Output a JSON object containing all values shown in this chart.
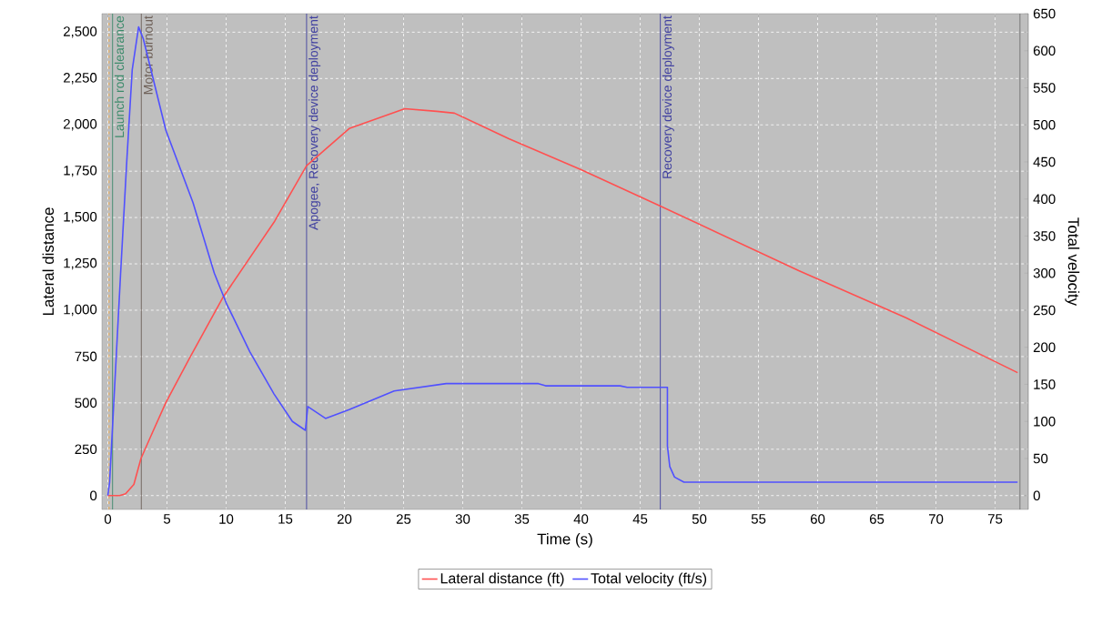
{
  "chart_data": {
    "type": "line",
    "xlabel": "Time (s)",
    "ylabel": "Lateral distance",
    "y2label": "Total velocity",
    "xlim": [
      -0.5,
      77.8
    ],
    "ylim": [
      -75,
      2600
    ],
    "y2lim": [
      -18.75,
      650
    ],
    "xticks": [
      0,
      5,
      10,
      15,
      20,
      25,
      30,
      35,
      40,
      45,
      50,
      55,
      60,
      65,
      70,
      75
    ],
    "yticks": [
      0,
      250,
      500,
      750,
      {
        "value": 1000,
        "label": "1,000"
      },
      {
        "value": 1250,
        "label": "1,250"
      },
      {
        "value": 1500,
        "label": "1,500"
      },
      {
        "value": 1750,
        "label": "1,750"
      },
      {
        "value": 2000,
        "label": "2,000"
      },
      {
        "value": 2250,
        "label": "2,250"
      },
      {
        "value": 2500,
        "label": "2,500"
      }
    ],
    "y2ticks": [
      0,
      50,
      100,
      150,
      200,
      250,
      300,
      350,
      400,
      450,
      500,
      550,
      600,
      650
    ],
    "grid": true,
    "legend": "bottom",
    "marker": "none",
    "line_style": "solid",
    "series": [
      {
        "name": "Lateral distance (ft)",
        "color": "#ff5050",
        "x": [
          0,
          0.5,
          1.0,
          1.5,
          2.2,
          2.8,
          3.7,
          4.9,
          6.95,
          9.7,
          14.1,
          16.8,
          20.4,
          25.1,
          27.8,
          29.3,
          33.9,
          40,
          46.7,
          58.4,
          67.5,
          76.9
        ],
        "values": [
          0,
          0,
          0,
          10,
          60,
          200,
          330,
          501,
          747,
          1066,
          1480,
          1780,
          1980,
          2087,
          2073,
          2063,
          1925,
          1758,
          1562,
          1213,
          958,
          663
        ]
      },
      {
        "name": "Total velocity (ft/s)",
        "color": "#5050ff",
        "axis": "y2",
        "x": [
          0,
          0.15,
          1.07,
          1.6,
          2.06,
          2.6,
          3.0,
          4.9,
          7.2,
          9.0,
          10.0,
          12.0,
          14.05,
          15.6,
          16.7,
          16.9,
          18.4,
          20.4,
          24.2,
          28.6,
          36.4,
          37,
          43.3,
          43.9,
          47.3,
          47.3,
          47.5,
          47.9,
          48.7,
          76.9
        ],
        "values": [
          0,
          18,
          297,
          451,
          574,
          632,
          616,
          493,
          395,
          300,
          260,
          194,
          137,
          100,
          88,
          120,
          104,
          116,
          141,
          151,
          151,
          148,
          148,
          146,
          146,
          67,
          39,
          25,
          18,
          18
        ]
      }
    ],
    "ref_lines": [
      {
        "axis": "x",
        "value": 0.1,
        "color": "#e8a040",
        "line_style": "dashed"
      },
      {
        "axis": "x",
        "value": 0.4,
        "label": "Launch rod clearance",
        "color": "#3a8a6a",
        "line_style": "solid"
      },
      {
        "axis": "x",
        "value": 2.83,
        "label": "Motor burnout",
        "color": "#6e6058",
        "line_style": "solid"
      },
      {
        "axis": "x",
        "value": 16.8,
        "label": "Apogee, Recovery device deployment",
        "color": "#4040a0",
        "line_style": "solid"
      },
      {
        "axis": "x",
        "value": 46.7,
        "label": "Recovery device deployment",
        "color": "#4040a0",
        "line_style": "solid"
      },
      {
        "axis": "x",
        "value": 77.1,
        "color": "#707070",
        "line_style": "solid"
      }
    ]
  }
}
